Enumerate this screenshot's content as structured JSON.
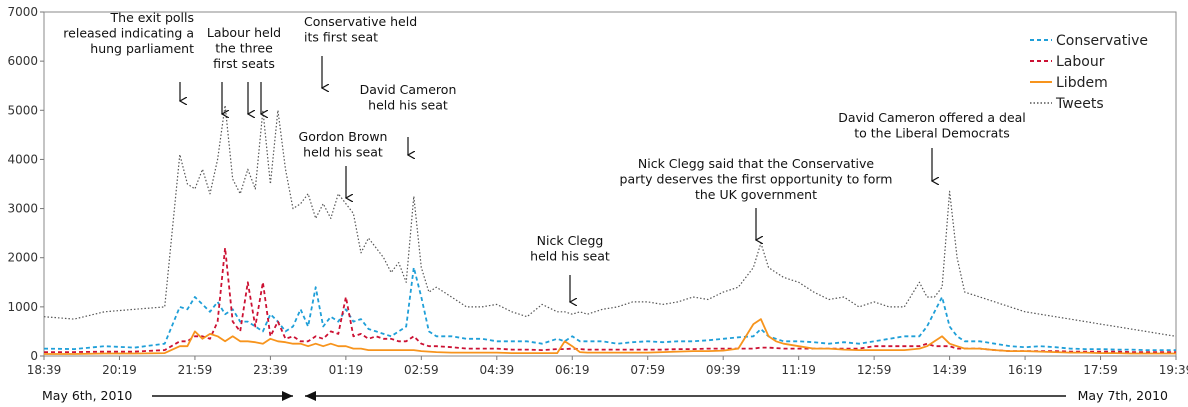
{
  "chart_data": {
    "type": "line",
    "title": "",
    "xlabel": "",
    "ylabel": "",
    "ylim": [
      0,
      7000
    ],
    "yticks": [
      0,
      1000,
      2000,
      3000,
      4000,
      5000,
      6000,
      7000
    ],
    "xticks": [
      "18:39",
      "20:19",
      "21:59",
      "23:39",
      "01:19",
      "02:59",
      "04:39",
      "06:19",
      "07:59",
      "09:39",
      "11:19",
      "12:59",
      "14:39",
      "16:19",
      "17:59",
      "19:39"
    ],
    "legend_position": "top-right",
    "x": [
      "18:39",
      "19:19",
      "19:59",
      "20:39",
      "21:19",
      "21:39",
      "21:49",
      "21:59",
      "22:09",
      "22:19",
      "22:29",
      "22:39",
      "22:49",
      "22:59",
      "23:09",
      "23:19",
      "23:29",
      "23:39",
      "23:49",
      "23:59",
      "00:09",
      "00:19",
      "00:29",
      "00:39",
      "00:49",
      "00:59",
      "01:09",
      "01:19",
      "01:29",
      "01:39",
      "01:49",
      "01:59",
      "02:09",
      "02:19",
      "02:29",
      "02:39",
      "02:49",
      "02:59",
      "03:09",
      "03:19",
      "03:39",
      "03:59",
      "04:19",
      "04:39",
      "04:59",
      "05:19",
      "05:39",
      "05:59",
      "06:09",
      "06:19",
      "06:29",
      "06:39",
      "06:59",
      "07:19",
      "07:39",
      "07:59",
      "08:19",
      "08:39",
      "08:59",
      "09:19",
      "09:39",
      "09:59",
      "10:19",
      "10:29",
      "10:39",
      "10:49",
      "10:59",
      "11:19",
      "11:39",
      "11:59",
      "12:19",
      "12:39",
      "12:59",
      "13:19",
      "13:39",
      "13:59",
      "14:09",
      "14:19",
      "14:29",
      "14:39",
      "14:49",
      "14:59",
      "15:19",
      "15:39",
      "15:59",
      "16:19",
      "16:39",
      "16:59",
      "17:19",
      "17:39",
      "17:59",
      "18:19",
      "18:39",
      "18:59",
      "19:19",
      "19:39"
    ],
    "series": [
      {
        "name": "Conservative",
        "color": "#1f9fd8",
        "dash": "4 3",
        "values": [
          150,
          140,
          200,
          170,
          250,
          1000,
          950,
          1200,
          1050,
          900,
          1100,
          850,
          950,
          700,
          700,
          600,
          500,
          850,
          700,
          500,
          600,
          950,
          600,
          1400,
          600,
          800,
          700,
          950,
          700,
          750,
          550,
          500,
          450,
          400,
          500,
          600,
          1800,
          1200,
          500,
          400,
          400,
          350,
          350,
          300,
          300,
          300,
          250,
          350,
          300,
          400,
          300,
          300,
          300,
          250,
          280,
          300,
          280,
          300,
          300,
          320,
          350,
          380,
          400,
          550,
          400,
          350,
          300,
          300,
          280,
          250,
          280,
          250,
          300,
          350,
          400,
          400,
          600,
          900,
          1200,
          600,
          400,
          300,
          300,
          250,
          200,
          180,
          200,
          180,
          150,
          140,
          140,
          130,
          130,
          120,
          120,
          120
        ]
      },
      {
        "name": "Labour",
        "color": "#cc1133",
        "dash": "4 3",
        "values": [
          80,
          80,
          90,
          90,
          120,
          300,
          300,
          400,
          400,
          350,
          700,
          2200,
          700,
          500,
          1500,
          600,
          1500,
          400,
          700,
          350,
          400,
          300,
          300,
          400,
          350,
          500,
          450,
          1200,
          400,
          450,
          350,
          400,
          350,
          350,
          300,
          300,
          400,
          250,
          200,
          200,
          180,
          150,
          150,
          150,
          130,
          130,
          120,
          140,
          140,
          150,
          140,
          130,
          130,
          130,
          130,
          130,
          130,
          140,
          140,
          150,
          150,
          150,
          150,
          170,
          170,
          160,
          150,
          150,
          150,
          150,
          150,
          150,
          200,
          200,
          200,
          200,
          250,
          200,
          200,
          200,
          150,
          150,
          150,
          120,
          100,
          100,
          100,
          100,
          90,
          90,
          90,
          90,
          80,
          80,
          80,
          80
        ]
      },
      {
        "name": "Libdem",
        "color": "#f7941d",
        "dash": "",
        "values": [
          40,
          40,
          50,
          50,
          60,
          200,
          200,
          500,
          350,
          450,
          400,
          300,
          400,
          300,
          300,
          280,
          250,
          350,
          300,
          280,
          250,
          250,
          200,
          250,
          200,
          250,
          200,
          200,
          150,
          150,
          120,
          120,
          120,
          120,
          120,
          120,
          120,
          100,
          90,
          80,
          70,
          70,
          70,
          70,
          60,
          60,
          60,
          60,
          300,
          200,
          80,
          70,
          70,
          70,
          70,
          70,
          80,
          90,
          100,
          100,
          110,
          150,
          650,
          750,
          400,
          300,
          250,
          200,
          150,
          150,
          130,
          120,
          120,
          120,
          120,
          150,
          200,
          300,
          400,
          250,
          200,
          150,
          150,
          120,
          100,
          100,
          90,
          80,
          70,
          70,
          60,
          60,
          50,
          50,
          50,
          50
        ]
      },
      {
        "name": "Tweets",
        "color": "#555555",
        "dash": "1.5 2",
        "values": [
          800,
          750,
          900,
          950,
          1000,
          4100,
          3500,
          3400,
          3800,
          3300,
          4000,
          5100,
          3600,
          3300,
          3800,
          3400,
          5000,
          3500,
          5000,
          3800,
          3000,
          3100,
          3300,
          2800,
          3100,
          2800,
          3300,
          3100,
          2900,
          2100,
          2400,
          2200,
          2000,
          1700,
          1900,
          1500,
          3250,
          1800,
          1300,
          1400,
          1200,
          1000,
          1000,
          1050,
          900,
          800,
          1050,
          900,
          900,
          850,
          900,
          850,
          950,
          1000,
          1100,
          1100,
          1050,
          1100,
          1200,
          1150,
          1300,
          1400,
          1800,
          2300,
          1800,
          1700,
          1600,
          1500,
          1300,
          1150,
          1200,
          1000,
          1100,
          1000,
          1000,
          1500,
          1200,
          1200,
          1400,
          3350,
          2000,
          1300,
          1200,
          1100,
          1000,
          900,
          850,
          800,
          750,
          700,
          650,
          600,
          550,
          500,
          450,
          400
        ]
      }
    ],
    "annotations": [
      {
        "lines": [
          "The exit polls",
          "released indicating a",
          "hung parliament"
        ],
        "align": "end",
        "arrow_at": [
          "21:49"
        ]
      },
      {
        "lines": [
          "Labour held",
          "the three",
          "first seats"
        ],
        "align": "middle",
        "arrow_at": [
          "22:39",
          "23:19",
          "23:39"
        ]
      },
      {
        "lines": [
          "Conservative held",
          "its first seat"
        ],
        "align": "start",
        "arrow_at": [
          "00:19"
        ]
      },
      {
        "lines": [
          "David Cameron",
          "held his seat"
        ],
        "align": "middle",
        "arrow_at": [
          "02:49"
        ]
      },
      {
        "lines": [
          "Gordon Brown",
          "held his seat"
        ],
        "align": "middle",
        "arrow_at": [
          "01:19"
        ]
      },
      {
        "lines": [
          "Nick Clegg",
          "held his seat"
        ],
        "align": "middle",
        "arrow_at": [
          "06:09"
        ]
      },
      {
        "lines": [
          "Nick Clegg said that the Conservative",
          "party deserves the first opportunity to form",
          "the UK government"
        ],
        "align": "middle",
        "arrow_at": [
          "10:29"
        ]
      },
      {
        "lines": [
          "David Cameron offered a deal",
          "to the Liberal Democrats"
        ],
        "align": "middle",
        "arrow_at": [
          "14:39"
        ]
      }
    ],
    "date_labels": [
      "May 6th, 2010",
      "May 7th, 2010"
    ]
  }
}
